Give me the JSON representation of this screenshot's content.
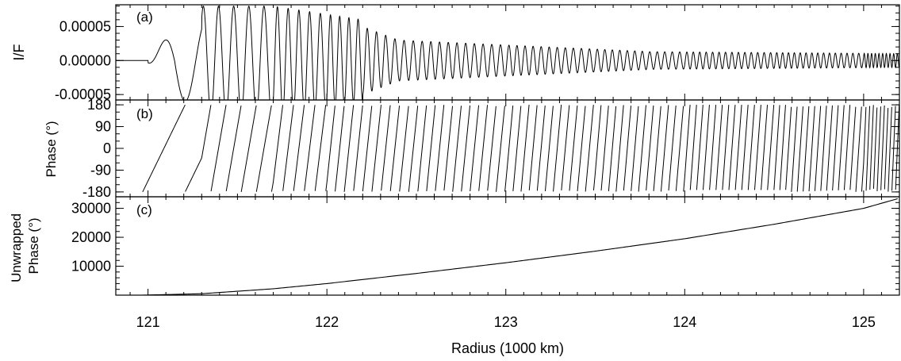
{
  "figure": {
    "xlabel": "Radius (1000 km)",
    "xticks": [
      "121",
      "122",
      "123",
      "124",
      "125"
    ],
    "colors": {
      "line": "#000000",
      "background": "#ffffff"
    }
  },
  "chart_data": [
    {
      "type": "line",
      "panel_label": "(a)",
      "ylabel": "I/F",
      "yticks": [
        "0.00005",
        "0.00000",
        "-0.00005"
      ],
      "xlim": [
        120.82,
        125.2
      ],
      "ylim": [
        -5.8e-05,
        8.2e-05
      ],
      "series": [
        {
          "description": "oscillating wave profile, baseline 0 before 120.97, amplitude peaks ~0.00008 near 121.3-121.6 decaying to ~0.00001 beyond 123.5, wavelength shrinking with radius",
          "x_start": 120.97,
          "x_end": 125.2,
          "peak_amplitude": 8e-05,
          "final_amplitude": 1e-05
        }
      ]
    },
    {
      "type": "line",
      "panel_label": "(b)",
      "ylabel": "Phase (°)",
      "yticks": [
        "180",
        "90",
        "0",
        "-90",
        "-180"
      ],
      "xlim": [
        120.82,
        125.2
      ],
      "ylim": [
        -200,
        200
      ],
      "series": [
        {
          "description": "wrapped phase, sawtooth between -180 and 180, one wrap per wave cycle",
          "x_start": 120.97,
          "x_end": 125.2
        }
      ]
    },
    {
      "type": "line",
      "panel_label": "(c)",
      "ylabel": "Unwrapped Phase (°)",
      "yticks": [
        "30000",
        "20000",
        "10000"
      ],
      "xlim": [
        120.82,
        125.2
      ],
      "ylim": [
        0,
        34000
      ],
      "series": [
        {
          "description": "unwrapped phase, smoothly increasing",
          "x": [
            120.97,
            121.3,
            121.7,
            122.0,
            122.5,
            123.0,
            123.5,
            124.0,
            124.5,
            125.0,
            125.2
          ],
          "y": [
            0,
            500,
            2200,
            4000,
            7500,
            11200,
            15200,
            19500,
            24500,
            30000,
            33500
          ]
        }
      ]
    }
  ]
}
